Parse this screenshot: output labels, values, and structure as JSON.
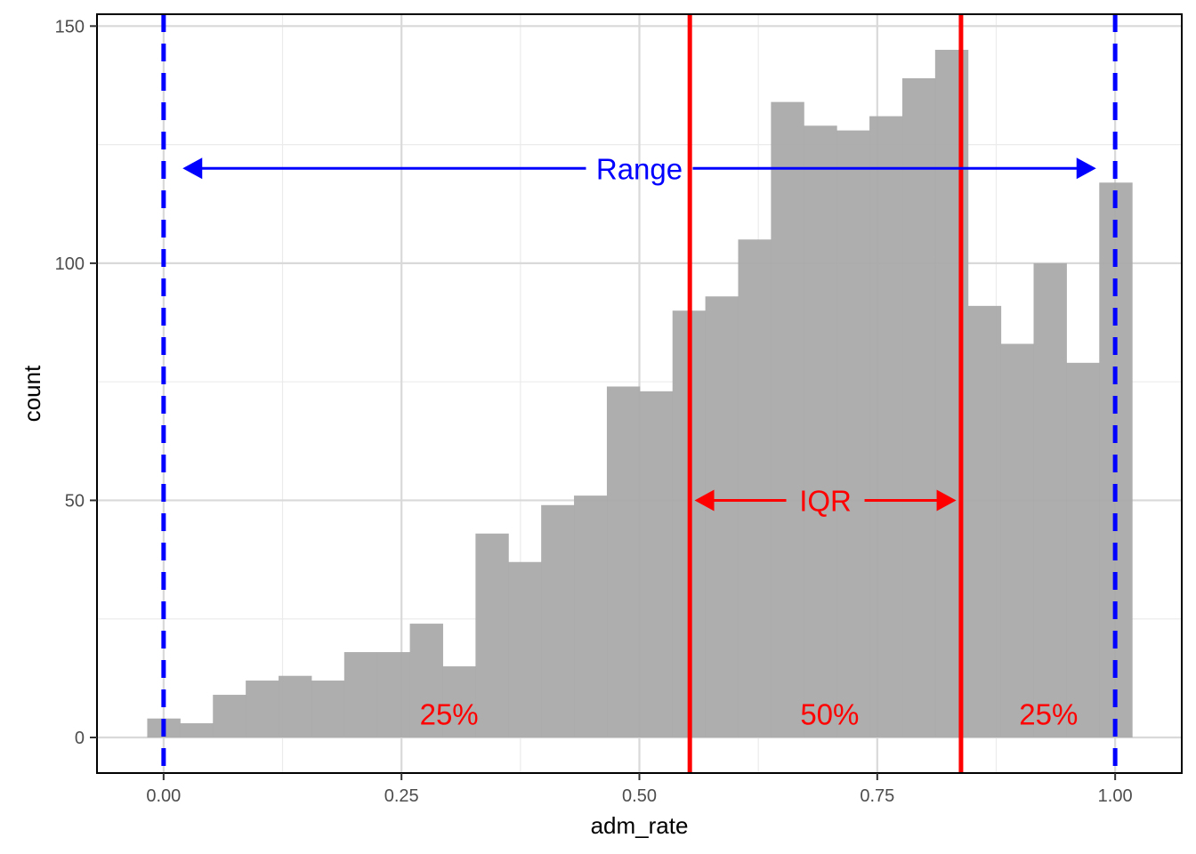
{
  "chart_data": {
    "type": "bar",
    "subtype": "histogram",
    "xlabel": "adm_rate",
    "ylabel": "count",
    "xlim": [
      -0.07,
      1.07
    ],
    "ylim": [
      -7.5,
      152.5
    ],
    "x_ticks": [
      0.0,
      0.25,
      0.5,
      0.75,
      1.0
    ],
    "x_tick_labels": [
      "0.00",
      "0.25",
      "0.50",
      "0.75",
      "1.00"
    ],
    "y_ticks": [
      0,
      50,
      100,
      150
    ],
    "y_tick_labels": [
      "0",
      "50",
      "100",
      "150"
    ],
    "grid": true,
    "bin_width": 0.0345,
    "bin_start": -0.0172,
    "counts": [
      4,
      3,
      9,
      12,
      13,
      12,
      18,
      18,
      24,
      15,
      43,
      37,
      49,
      51,
      74,
      73,
      90,
      93,
      105,
      134,
      129,
      128,
      131,
      139,
      145,
      91,
      83,
      100,
      79,
      117
    ],
    "bar_color": "#aaaaaa",
    "range_lines": {
      "values": [
        0.0,
        1.0
      ],
      "color": "#0000ff",
      "style": "dashed"
    },
    "quartile_lines": {
      "values": [
        0.553,
        0.838
      ],
      "color": "#ff0000",
      "style": "solid"
    },
    "range_annotation": {
      "label": "Range",
      "from": 0.02,
      "to": 0.98,
      "y": 120
    },
    "iqr_annotation": {
      "label": "IQR",
      "from": 0.558,
      "to": 0.833,
      "y": 50
    },
    "percent_labels": [
      {
        "text": "25%",
        "x": 0.3,
        "y": 5
      },
      {
        "text": "50%",
        "x": 0.7,
        "y": 5
      },
      {
        "text": "25%",
        "x": 0.93,
        "y": 5
      }
    ]
  }
}
